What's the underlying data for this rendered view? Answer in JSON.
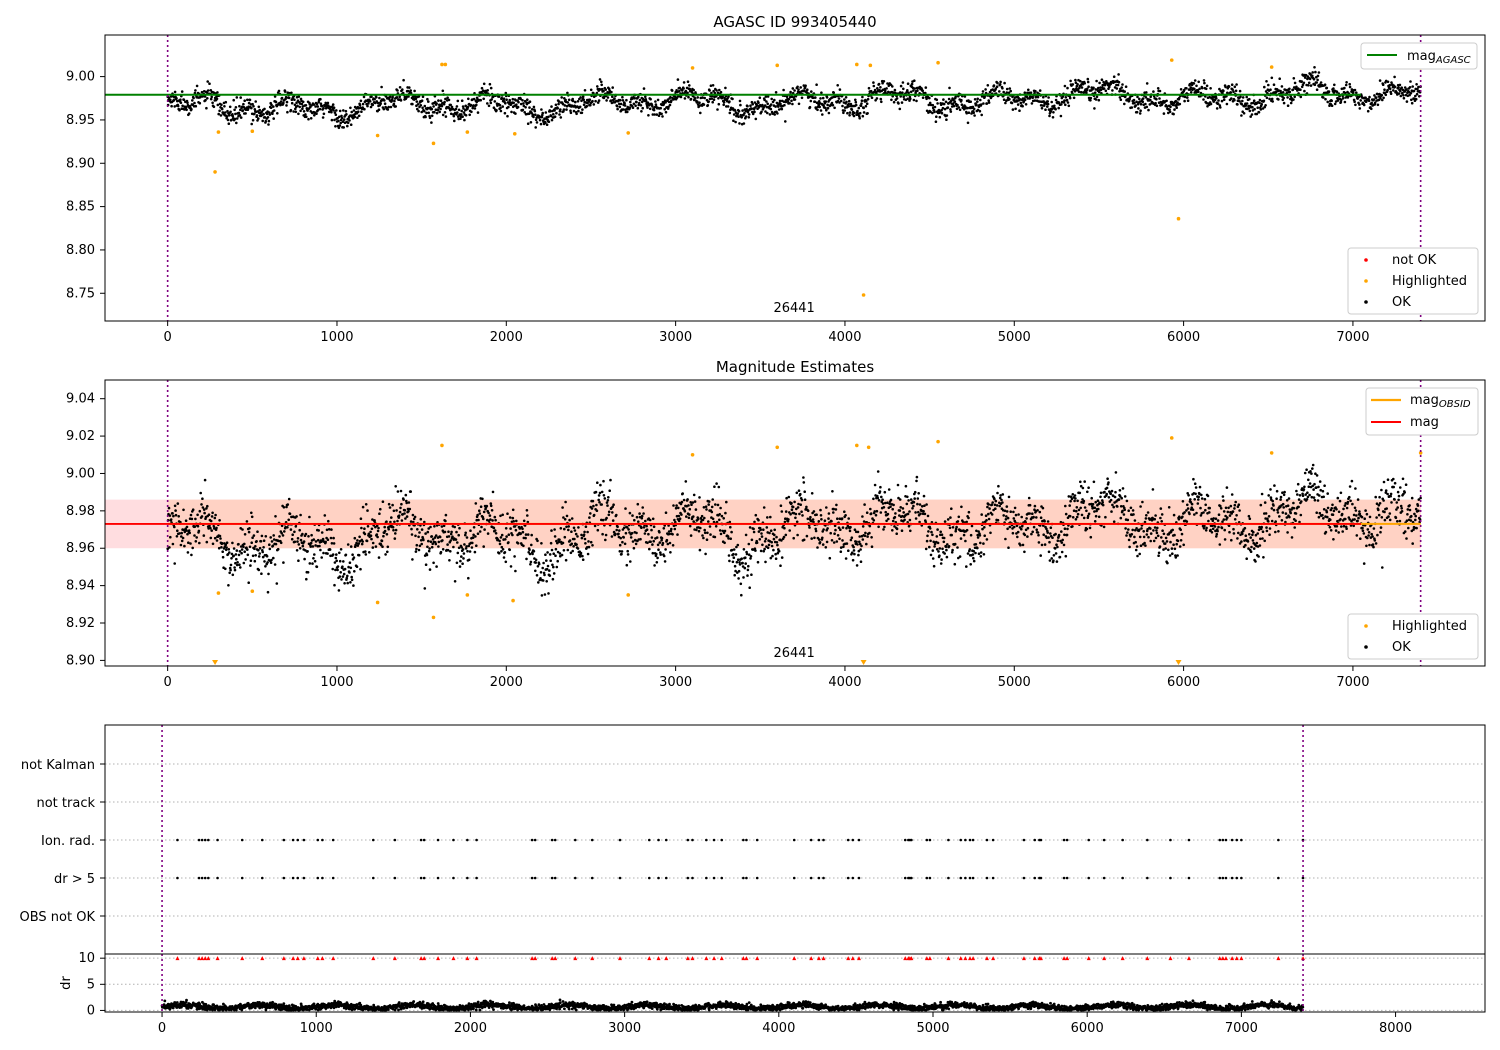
{
  "chart_data": [
    {
      "type": "scatter",
      "title": "AGASC ID 993405440",
      "xlim": [
        -370,
        7780
      ],
      "ylim": [
        8.718,
        9.048
      ],
      "yticks": [
        "8.75",
        "8.80",
        "8.85",
        "8.90",
        "8.95",
        "9.00"
      ],
      "xticks": [
        "0",
        "1000",
        "2000",
        "3000",
        "4000",
        "5000",
        "6000",
        "7000",
        "8000"
      ],
      "reference_lines": {
        "mag_agasc": 8.979,
        "obs_start": 0,
        "obs_end": 7400
      },
      "obsid_label": {
        "text": "26441",
        "x": 3700
      },
      "baseline": {
        "start": 8.963,
        "end": 8.981
      },
      "outliers": [
        {
          "x": 280,
          "y": 8.89
        },
        {
          "x": 4110,
          "y": 8.748
        },
        {
          "x": 5970,
          "y": 8.836
        },
        {
          "x": 1570,
          "y": 8.923
        },
        {
          "x": 1240,
          "y": 8.932
        },
        {
          "x": 2050,
          "y": 8.934
        },
        {
          "x": 2720,
          "y": 8.935
        },
        {
          "x": 3100,
          "y": 9.01
        },
        {
          "x": 3600,
          "y": 9.013
        },
        {
          "x": 4070,
          "y": 9.014
        },
        {
          "x": 4150,
          "y": 9.013
        },
        {
          "x": 4550,
          "y": 9.016
        },
        {
          "x": 5930,
          "y": 9.019
        },
        {
          "x": 6520,
          "y": 9.011
        },
        {
          "x": 7400,
          "y": 9.01
        },
        {
          "x": 1620,
          "y": 9.014
        },
        {
          "x": 1640,
          "y": 9.014
        },
        {
          "x": 300,
          "y": 8.936
        },
        {
          "x": 500,
          "y": 8.937
        },
        {
          "x": 1770,
          "y": 8.936
        }
      ],
      "legend": {
        "lines": [
          {
            "label": "mag",
            "sub": "AGASC",
            "color": "#008000"
          }
        ],
        "points": [
          {
            "label": "not OK",
            "color": "#ff0000"
          },
          {
            "label": "Highlighted",
            "color": "#ffa500"
          },
          {
            "label": "OK",
            "color": "#000000"
          }
        ]
      }
    },
    {
      "type": "scatter",
      "title": "Magnitude Estimates",
      "xlim": [
        -370,
        7780
      ],
      "ylim": [
        8.897,
        9.05
      ],
      "yticks": [
        "8.90",
        "8.92",
        "8.94",
        "8.96",
        "8.98",
        "9.00",
        "9.02",
        "9.04"
      ],
      "xticks": [
        "0",
        "1000",
        "2000",
        "3000",
        "4000",
        "5000",
        "6000",
        "7000",
        "8000"
      ],
      "reference_lines": {
        "mag_obsid": 8.973,
        "mag": 8.973,
        "band_low": 8.96,
        "band_high": 8.986,
        "obs_start": 0,
        "obs_end": 7400
      },
      "obsid_label": {
        "text": "26441",
        "x": 3700
      },
      "baseline": {
        "start": 8.962,
        "end": 8.979
      },
      "outliers": [
        {
          "x": 1240,
          "y": 8.931
        },
        {
          "x": 1570,
          "y": 8.923
        },
        {
          "x": 2040,
          "y": 8.932
        },
        {
          "x": 2720,
          "y": 8.935
        },
        {
          "x": 3100,
          "y": 9.01
        },
        {
          "x": 3600,
          "y": 9.014
        },
        {
          "x": 4070,
          "y": 9.015
        },
        {
          "x": 4140,
          "y": 9.014
        },
        {
          "x": 4550,
          "y": 9.017
        },
        {
          "x": 5930,
          "y": 9.019
        },
        {
          "x": 6520,
          "y": 9.011
        },
        {
          "x": 7400,
          "y": 9.011
        },
        {
          "x": 1620,
          "y": 9.015
        },
        {
          "x": 300,
          "y": 8.936
        },
        {
          "x": 500,
          "y": 8.937
        },
        {
          "x": 1770,
          "y": 8.935
        }
      ],
      "clipped_markers": [
        {
          "x": 280
        },
        {
          "x": 4110
        },
        {
          "x": 5970
        }
      ],
      "legend": {
        "lines": [
          {
            "label": "mag",
            "sub": "OBSID",
            "color": "#ffa500"
          },
          {
            "label": "mag",
            "sub": "",
            "color": "#ff0000"
          }
        ],
        "points": [
          {
            "label": "Highlighted",
            "color": "#ffa500"
          },
          {
            "label": "OK",
            "color": "#000000"
          }
        ]
      }
    },
    {
      "type": "scatter",
      "title": "",
      "xlim": [
        -370,
        8580
      ],
      "flag_categories": [
        "not Kalman",
        "not track",
        "Ion. rad.",
        "dr > 5",
        "OBS not OK"
      ],
      "flag_x": [
        100,
        240,
        260,
        280,
        300,
        360,
        520,
        650,
        790,
        850,
        880,
        920,
        1010,
        1040,
        1110,
        1370,
        1510,
        1680,
        1700,
        1790,
        1890,
        1980,
        2040,
        2400,
        2420,
        2530,
        2550,
        2680,
        2790,
        2970,
        3160,
        3220,
        3270,
        3410,
        3440,
        3530,
        3580,
        3630,
        3770,
        3790,
        3860,
        4100,
        4210,
        4260,
        4290,
        4450,
        4480,
        4520,
        4820,
        4840,
        4850,
        4860,
        4960,
        4980,
        5100,
        5180,
        5210,
        5240,
        5260,
        5350,
        5390,
        5590,
        5660,
        5690,
        5700,
        5850,
        5870,
        6010,
        6110,
        6230,
        6390,
        6540,
        6660,
        6860,
        6880,
        6900,
        6940,
        6970,
        7000,
        7240,
        7400
      ],
      "flag_rows": [
        "Ion. rad.",
        "dr > 5"
      ],
      "xticks": [
        "0",
        "1000",
        "2000",
        "3000",
        "4000",
        "5000",
        "6000",
        "7000",
        "8000"
      ],
      "dr": {
        "ylabel": "dr",
        "yticks": [
          "0",
          "5",
          "10"
        ],
        "ylim": [
          -0.3,
          10.8
        ],
        "clip_value": 10,
        "typical_range": [
          0.2,
          1.8
        ]
      }
    }
  ],
  "colors": {
    "ok": "#000000",
    "highlight": "#ffa500",
    "notok": "#ff0000",
    "agasc": "#008000",
    "band": "#ffd2c4"
  }
}
